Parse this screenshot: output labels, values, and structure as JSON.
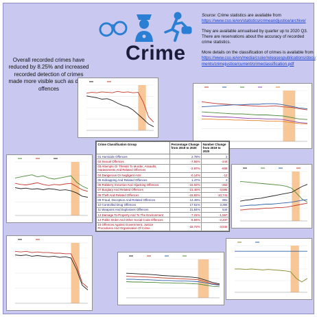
{
  "header": {
    "title": "Crime",
    "icons": [
      "handcuffs-icon",
      "police-officer-icon",
      "running-thief-icon"
    ]
  },
  "source_panel": {
    "source_label": "Source",
    "source_text": ": Crime statistics are available from",
    "source_url": "https://www.cso.ie/en/statistics/crimeandjustice/archive/",
    "availability_note": "They are available annualised by quarter up to 2020 Q3. There are reservations about the accuracy of recorded crime statistics.",
    "classification_note": "More details on the classification of crimes is available from",
    "classification_url": "https://www.cso.ie/en/media/csoie/releasespublications/documents/crimejustice/current/crimeclassification.pdf"
  },
  "summary_text": "Overall recorded crimes have reduced by 8.25% and increased recorded detection of crimes made more visible such as drugs offences",
  "table": {
    "headers": [
      "Crime Classification Group",
      "Percentage Change from 2019 to 2020",
      "Number Change from 2019 to 2020"
    ],
    "rows": [
      {
        "group": "01 Homicide Offences",
        "pct": "2.78%",
        "num": "2",
        "dir": "pos"
      },
      {
        "group": "02 Sexual Offences",
        "pct": "-7.55%",
        "num": "-244",
        "dir": "neg"
      },
      {
        "group": "03 Attempts Or Threats To Murder, Assaults, Harassments And Related Offences",
        "pct": "-2.97%",
        "num": "-608",
        "dir": "neg"
      },
      {
        "group": "04 Dangerous Or Negligent Acts",
        "pct": "-0.14%",
        "num": "-12",
        "dir": "neg"
      },
      {
        "group": "05 Kidnapping And Related Offences",
        "pct": "1.47%",
        "num": "2",
        "dir": "pos"
      },
      {
        "group": "06 Robbery, Extortion And Hijacking Offences",
        "pct": "-15.02%",
        "num": "-363",
        "dir": "neg"
      },
      {
        "group": "07 Burglary And Related Offences",
        "pct": "-21.46%",
        "num": "-3,595",
        "dir": "neg"
      },
      {
        "group": "08 Theft And Related Offences",
        "pct": "-15.92%",
        "num": "-10,741",
        "dir": "neg"
      },
      {
        "group": "09 Fraud, Deception And Related Offences",
        "pct": "14.49%",
        "num": "991",
        "dir": "pos"
      },
      {
        "group": "10 Controlled Drug Offences",
        "pct": "17.61%",
        "num": "3,394",
        "dir": "pos"
      },
      {
        "group": "11 Weapons And Explosives Offences",
        "pct": "21.84%",
        "num": "544",
        "dir": "pos"
      },
      {
        "group": "12 Damage To Property And To The Environment",
        "pct": "-7.21%",
        "num": "-1,567",
        "dir": "neg"
      },
      {
        "group": "13 Public Order And Other Social Code Offences",
        "pct": "-6.84%",
        "num": "-2,237",
        "dir": "neg"
      },
      {
        "group": "15 Offences Against Government, Justice Procedures And Organisation Of Crime",
        "pct": "-22.72%",
        "num": "-3,532",
        "dir": "neg"
      }
    ]
  },
  "colors": {
    "background": "#c9c8f0",
    "highlight_band": "#f6b97d",
    "positive_text": "#1a1a7a",
    "negative_text": "#b00018",
    "link": "#1a3fc8"
  },
  "mini_charts": [
    {
      "id": "chart-top-center",
      "series": [
        {
          "color": "#1f1f1f",
          "values": [
            0.76,
            0.74,
            0.72,
            0.69,
            0.7,
            0.66,
            0.6,
            0.55,
            0.52,
            0.45,
            0.35,
            0.25,
            0.14,
            0.08
          ]
        },
        {
          "color": "#c0392b",
          "values": [
            0.82,
            0.84,
            0.83,
            0.85,
            0.84,
            0.83,
            0.86,
            0.84,
            0.85,
            0.83,
            0.84,
            0.62,
            0.3,
            0.18
          ]
        }
      ]
    },
    {
      "id": "chart-top-right",
      "series": [
        {
          "color": "#c0392b",
          "values": [
            0.78,
            0.76,
            0.74,
            0.73,
            0.72,
            0.71,
            0.7,
            0.69,
            0.69,
            0.7,
            0.68,
            0.67,
            0.64,
            0.62
          ]
        },
        {
          "color": "#2e5fa8",
          "values": [
            0.68,
            0.69,
            0.7,
            0.71,
            0.72,
            0.72,
            0.73,
            0.73,
            0.74,
            0.74,
            0.72,
            0.69,
            0.66,
            0.64
          ]
        },
        {
          "color": "#4b8a3a",
          "values": [
            0.58,
            0.57,
            0.56,
            0.55,
            0.54,
            0.54,
            0.53,
            0.52,
            0.52,
            0.51,
            0.5,
            0.47,
            0.44,
            0.43
          ]
        },
        {
          "color": "#8e44ad",
          "values": [
            0.5,
            0.49,
            0.48,
            0.48,
            0.47,
            0.46,
            0.45,
            0.45,
            0.44,
            0.44,
            0.43,
            0.4,
            0.37,
            0.36
          ]
        },
        {
          "color": "#e67e22",
          "values": [
            0.44,
            0.44,
            0.43,
            0.43,
            0.42,
            0.42,
            0.41,
            0.41,
            0.4,
            0.4,
            0.39,
            0.37,
            0.35,
            0.34
          ]
        }
      ]
    },
    {
      "id": "chart-mid-left",
      "series": [
        {
          "color": "#4b8a3a",
          "values": [
            0.7,
            0.72,
            0.74,
            0.76,
            0.72,
            0.74,
            0.7,
            0.68,
            0.7,
            0.72,
            0.74,
            0.62,
            0.55,
            0.5
          ]
        },
        {
          "color": "#c0392b",
          "values": [
            0.6,
            0.58,
            0.57,
            0.59,
            0.61,
            0.58,
            0.56,
            0.58,
            0.57,
            0.59,
            0.6,
            0.54,
            0.48,
            0.45
          ]
        },
        {
          "color": "#1f1f1f",
          "values": [
            0.52,
            0.5,
            0.51,
            0.49,
            0.5,
            0.48,
            0.5,
            0.49,
            0.47,
            0.48,
            0.46,
            0.42,
            0.36,
            0.34
          ]
        }
      ]
    },
    {
      "id": "chart-mid-right",
      "series": [
        {
          "color": "#1f1f1f",
          "values": [
            0.4,
            0.42,
            0.43,
            0.45,
            0.46,
            0.48,
            0.5,
            0.52,
            0.54,
            0.56,
            0.58,
            0.64,
            0.7,
            0.74
          ]
        },
        {
          "color": "#4b8a3a",
          "values": [
            0.8,
            0.79,
            0.78,
            0.77,
            0.76,
            0.75,
            0.74,
            0.73,
            0.72,
            0.7,
            0.66,
            0.55,
            0.44,
            0.38
          ]
        },
        {
          "color": "#2e5fa8",
          "values": [
            0.3,
            0.31,
            0.32,
            0.32,
            0.33,
            0.34,
            0.34,
            0.35,
            0.36,
            0.37,
            0.38,
            0.4,
            0.42,
            0.43
          ]
        },
        {
          "color": "#c0392b",
          "values": [
            0.22,
            0.23,
            0.24,
            0.24,
            0.25,
            0.26,
            0.26,
            0.27,
            0.27,
            0.28,
            0.3,
            0.32,
            0.34,
            0.36
          ]
        }
      ]
    },
    {
      "id": "chart-bottom-left",
      "series": [
        {
          "color": "#1f1f1f",
          "values": [
            0.8,
            0.79,
            0.8,
            0.78,
            0.79,
            0.78,
            0.77,
            0.78,
            0.76,
            0.77,
            0.75,
            0.56,
            0.3,
            0.22
          ]
        },
        {
          "color": "#c0392b",
          "values": [
            0.86,
            0.85,
            0.86,
            0.84,
            0.85,
            0.84,
            0.84,
            0.83,
            0.83,
            0.82,
            0.82,
            0.62,
            0.34,
            0.26
          ]
        }
      ]
    },
    {
      "id": "chart-bottom-center",
      "series": [
        {
          "color": "#1f1f1f",
          "values": [
            0.64,
            0.63,
            0.62,
            0.61,
            0.6,
            0.58,
            0.57,
            0.56,
            0.55,
            0.54,
            0.52,
            0.46,
            0.4,
            0.36
          ]
        },
        {
          "color": "#c0392b",
          "values": [
            0.56,
            0.55,
            0.55,
            0.54,
            0.53,
            0.52,
            0.51,
            0.5,
            0.49,
            0.48,
            0.47,
            0.42,
            0.37,
            0.34
          ]
        },
        {
          "color": "#2e5fa8",
          "values": [
            0.48,
            0.48,
            0.47,
            0.47,
            0.46,
            0.45,
            0.45,
            0.44,
            0.44,
            0.43,
            0.42,
            0.39,
            0.35,
            0.33
          ]
        },
        {
          "color": "#4b8a3a",
          "values": [
            0.42,
            0.41,
            0.41,
            0.4,
            0.4,
            0.39,
            0.39,
            0.38,
            0.38,
            0.37,
            0.36,
            0.33,
            0.3,
            0.29
          ]
        }
      ]
    },
    {
      "id": "chart-bottom-right",
      "series": [
        {
          "color": "#8a8a2a",
          "values": [
            0.5,
            0.5,
            0.49,
            0.5,
            0.49,
            0.48,
            0.49,
            0.48,
            0.47,
            0.46,
            0.44,
            0.3,
            0.22,
            0.3
          ]
        },
        {
          "color": "#2e5fa8",
          "values": [
            0.88,
            0.88,
            0.88,
            0.88,
            0.88,
            0.88,
            0.88,
            0.88,
            0.88,
            0.88,
            0.88,
            0.88,
            0.88,
            0.88
          ]
        }
      ]
    }
  ]
}
